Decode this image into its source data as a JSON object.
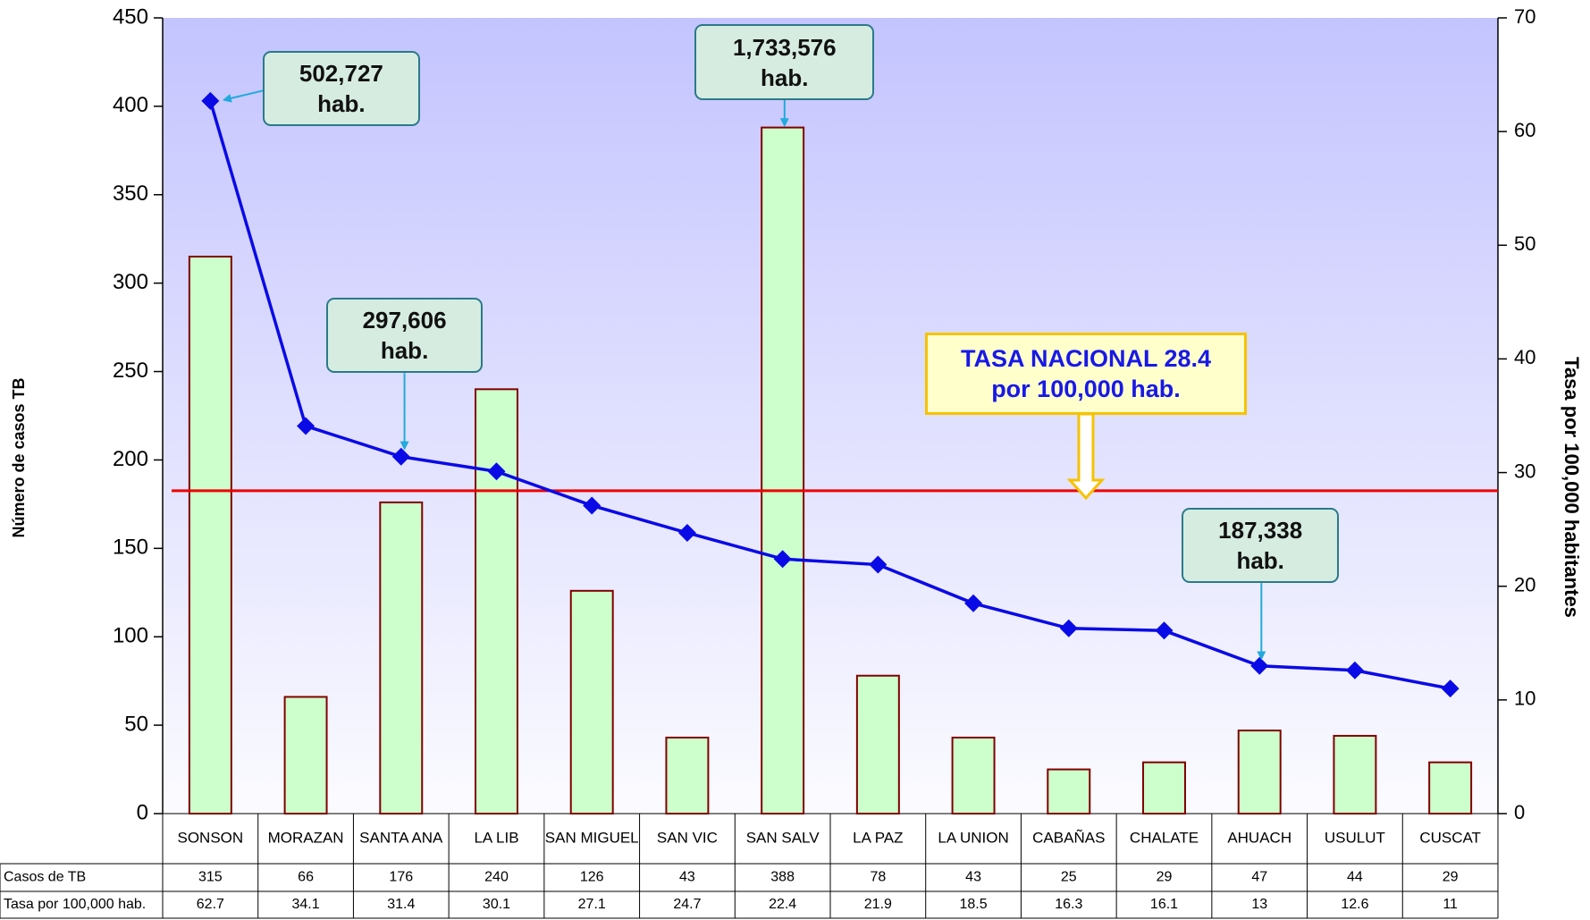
{
  "chart_data": {
    "type": "bar",
    "categories": [
      "SONSON",
      "MORAZAN",
      "SANTA ANA",
      "LA LIB",
      "SAN MIGUEL",
      "SAN VIC",
      "SAN SALV",
      "LA PAZ",
      "LA UNION",
      "CABAÑAS",
      "CHALATE",
      "AHUACH",
      "USULUT",
      "CUSCAT"
    ],
    "series": [
      {
        "name": "Casos de TB",
        "type": "bar",
        "color": "#ccffcc",
        "edge_color": "#800000",
        "values": [
          315,
          66,
          176,
          240,
          126,
          43,
          388,
          78,
          43,
          25,
          29,
          47,
          44,
          29
        ]
      },
      {
        "name": "Tasa por 100,000 hab.",
        "type": "line",
        "axis": "y2",
        "color": "#0a0ae6",
        "values": [
          62.7,
          34.1,
          31.4,
          30.1,
          27.1,
          24.7,
          22.4,
          21.9,
          18.5,
          16.3,
          16.1,
          13,
          12.6,
          11
        ]
      }
    ],
    "ylabel": "Número de casos TB",
    "y2label": "Tasa por 100,000 habitantes",
    "ylim": [
      0,
      450
    ],
    "yticks": [
      0,
      50,
      100,
      150,
      200,
      250,
      300,
      350,
      400,
      450
    ],
    "y2lim": [
      0,
      70
    ],
    "y2ticks": [
      0,
      10,
      20,
      30,
      40,
      50,
      60,
      70
    ],
    "national_rate": 28.4,
    "national_rate_color": "#ee0000",
    "annotations": [
      "502,727 hab.",
      "297,606 hab.",
      "1,733,576 hab.",
      "187,338 hab."
    ],
    "national_rate_label": "TASA NACIONAL 28.4 por 100,000 hab."
  }
}
